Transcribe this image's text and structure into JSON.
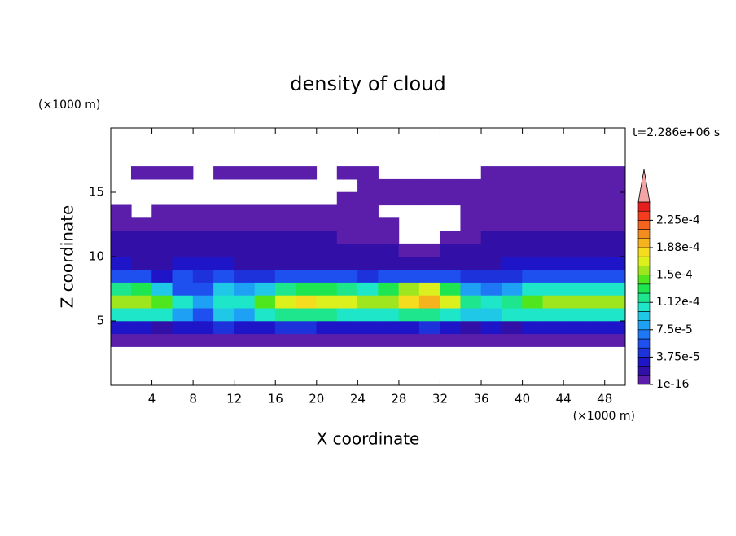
{
  "chart_data": {
    "type": "contour",
    "title": "density of cloud",
    "x_label": "X coordinate",
    "y_label": "Z coordinate",
    "x_unit": "(×1000 m)",
    "y_unit": "(×1000 m)",
    "annotation": "t=2.286e+06 s",
    "xlim": [
      0,
      50
    ],
    "ylim": [
      0,
      20
    ],
    "xticks": [
      4,
      8,
      12,
      16,
      20,
      24,
      28,
      32,
      36,
      40,
      44,
      48
    ],
    "yticks": [
      5,
      10,
      15
    ],
    "x": [
      1,
      3,
      5,
      7,
      9,
      11,
      13,
      15,
      17,
      19,
      21,
      23,
      25,
      27,
      29,
      31,
      33,
      35,
      37,
      39,
      41,
      43,
      45,
      47,
      49
    ],
    "y": [
      3.5,
      4.5,
      5.5,
      6.5,
      7.5,
      8.5,
      9.5,
      10.5,
      11.5,
      12.5,
      13.5,
      14.5,
      15.5,
      16.5
    ],
    "z_values": [
      [
        5e-06,
        5e-06,
        5e-06,
        5e-06,
        5e-06,
        5e-06,
        5e-06,
        5e-06,
        5e-06,
        5e-06,
        5e-06,
        5e-06,
        5e-06,
        5e-06,
        5e-06,
        5e-06,
        5e-06,
        5e-06,
        5e-06,
        5e-06,
        5e-06,
        5e-06,
        5e-06,
        5e-06,
        5e-06
      ],
      [
        3e-05,
        3e-05,
        2e-05,
        3e-05,
        3e-05,
        4e-05,
        3e-05,
        3e-05,
        4e-05,
        4e-05,
        3e-05,
        3e-05,
        3e-05,
        3e-05,
        3e-05,
        4e-05,
        3e-05,
        2e-05,
        3e-05,
        2e-05,
        3e-05,
        3e-05,
        3e-05,
        3e-05,
        3e-05
      ],
      [
        0.00011,
        0.0001,
        0.0001,
        8e-05,
        6e-05,
        9e-05,
        8e-05,
        0.00011,
        0.00012,
        0.00012,
        0.00012,
        0.00011,
        0.0001,
        0.00011,
        0.00012,
        0.00012,
        0.00011,
        9e-05,
        9e-05,
        0.0001,
        0.0001,
        0.00011,
        0.00011,
        0.00011,
        0.0001
      ],
      [
        0.00015,
        0.00015,
        0.00014,
        0.00011,
        8e-05,
        0.0001,
        0.00011,
        0.00014,
        0.00017,
        0.00018,
        0.00017,
        0.00017,
        0.00015,
        0.00016,
        0.00018,
        0.00019,
        0.00017,
        0.00012,
        0.00011,
        0.00012,
        0.00014,
        0.00016,
        0.00016,
        0.00016,
        0.00015
      ],
      [
        0.00012,
        0.00013,
        9e-05,
        6e-05,
        5e-05,
        9e-05,
        8e-05,
        9e-05,
        0.00012,
        0.00013,
        0.00013,
        0.00012,
        0.00011,
        0.00013,
        0.00015,
        0.00017,
        0.00013,
        8e-05,
        7e-05,
        8e-05,
        0.0001,
        0.00011,
        0.00011,
        0.00011,
        0.0001
      ],
      [
        6e-05,
        5e-05,
        3e-05,
        6e-05,
        4e-05,
        5e-05,
        4e-05,
        4e-05,
        5e-05,
        5e-05,
        5e-05,
        5e-05,
        4e-05,
        5e-05,
        5e-05,
        5e-05,
        5e-05,
        4e-05,
        4e-05,
        4e-05,
        5e-05,
        5e-05,
        5e-05,
        5e-05,
        5e-05
      ],
      [
        3e-05,
        2e-05,
        2e-05,
        3e-05,
        3e-05,
        3e-05,
        2e-05,
        2e-05,
        2e-05,
        2e-05,
        2e-05,
        2e-05,
        2e-05,
        2e-05,
        2e-05,
        2e-05,
        2e-05,
        2e-05,
        2e-05,
        3e-05,
        3e-05,
        3e-05,
        3e-05,
        3e-05,
        3e-05
      ],
      [
        2e-05,
        1.5e-05,
        1.5e-05,
        1.5e-05,
        1.5e-05,
        2e-05,
        2e-05,
        2e-05,
        1.5e-05,
        1.5e-05,
        1.5e-05,
        1.5e-05,
        1.5e-05,
        1.5e-05,
        5e-06,
        5e-06,
        1.5e-05,
        1.5e-05,
        1.5e-05,
        1.5e-05,
        2e-05,
        2e-05,
        2e-05,
        2e-05,
        1.5e-05
      ],
      [
        1.5e-05,
        1.5e-05,
        1.5e-05,
        1.5e-05,
        1.5e-05,
        1.5e-05,
        1.5e-05,
        1.5e-05,
        1.5e-05,
        1.5e-05,
        1.5e-05,
        5e-06,
        5e-06,
        5e-06,
        null,
        null,
        5e-06,
        5e-06,
        1.5e-05,
        1.5e-05,
        1.5e-05,
        1.5e-05,
        1.5e-05,
        1.5e-05,
        1.5e-05
      ],
      [
        5e-06,
        5e-06,
        5e-06,
        5e-06,
        5e-06,
        5e-06,
        5e-06,
        5e-06,
        5e-06,
        5e-06,
        5e-06,
        5e-06,
        5e-06,
        5e-06,
        null,
        null,
        null,
        5e-06,
        5e-06,
        5e-06,
        5e-06,
        5e-06,
        5e-06,
        5e-06,
        5e-06
      ],
      [
        5e-06,
        null,
        5e-06,
        5e-06,
        5e-06,
        5e-06,
        5e-06,
        5e-06,
        5e-06,
        5e-06,
        5e-06,
        5e-06,
        5e-06,
        null,
        null,
        null,
        null,
        5e-06,
        5e-06,
        5e-06,
        5e-06,
        5e-06,
        5e-06,
        5e-06,
        5e-06
      ],
      [
        null,
        null,
        null,
        null,
        null,
        null,
        null,
        null,
        null,
        null,
        null,
        5e-06,
        5e-06,
        5e-06,
        5e-06,
        5e-06,
        5e-06,
        5e-06,
        5e-06,
        5e-06,
        5e-06,
        5e-06,
        5e-06,
        5e-06,
        5e-06
      ],
      [
        null,
        null,
        null,
        null,
        null,
        null,
        null,
        null,
        null,
        null,
        null,
        null,
        5e-06,
        5e-06,
        5e-06,
        5e-06,
        5e-06,
        5e-06,
        5e-06,
        5e-06,
        5e-06,
        5e-06,
        5e-06,
        5e-06,
        5e-06
      ],
      [
        null,
        5e-06,
        5e-06,
        5e-06,
        null,
        5e-06,
        5e-06,
        5e-06,
        5e-06,
        5e-06,
        null,
        5e-06,
        5e-06,
        null,
        null,
        null,
        null,
        null,
        5e-06,
        5e-06,
        5e-06,
        5e-06,
        5e-06,
        5e-06,
        5e-06
      ]
    ],
    "levels": [
      1e-16,
      1.25e-05,
      2.5e-05,
      3.75e-05,
      5e-05,
      6.25e-05,
      7.5e-05,
      8.75e-05,
      0.0001,
      0.0001125,
      0.000125,
      0.0001375,
      0.00015,
      0.0001625,
      0.000175,
      0.0001875,
      0.0002,
      0.0002125,
      0.000225,
      0.0002375
    ],
    "colors": [
      "#5a1eaa",
      "#3210a8",
      "#1e14c8",
      "#1e32dc",
      "#1e50f0",
      "#1e78f5",
      "#1ea0f5",
      "#1ec8e6",
      "#1ee6c8",
      "#1ee68c",
      "#1ee650",
      "#50e61e",
      "#a0e61e",
      "#dcf01e",
      "#f5dc1e",
      "#f5b41e",
      "#f58c1e",
      "#f5641e",
      "#f53c1e",
      "#e61e1e"
    ],
    "extend_color": "#f4a4a4",
    "cbar_lim": [
      1e-16,
      0.00025
    ],
    "cbar_ticks": [
      1e-16,
      {
        "value": 3.75e-05,
        "label": "3.75e-5"
      },
      {
        "value": 7.5e-05,
        "label": "7.5e-5"
      },
      {
        "value": 0.0001125,
        "label": "1.12e-4"
      },
      {
        "value": 0.00015,
        "label": "1.5e-4"
      },
      {
        "value": 0.0001875,
        "label": "1.88e-4"
      },
      {
        "value": 0.000225,
        "label": "2.25e-4"
      }
    ]
  }
}
